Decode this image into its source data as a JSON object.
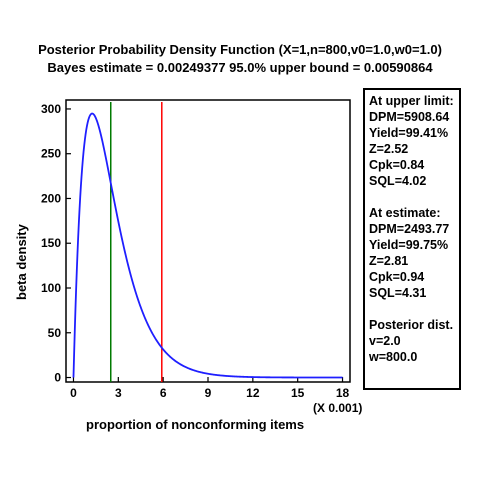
{
  "title_line1": "Posterior Probability Density Function (X=1,n=800,v0=1.0,w0=1.0)",
  "title_line2": "Bayes estimate = 0.00249377    95.0% upper bound = 0.00590864",
  "axes": {
    "ylabel": "beta density",
    "xlabel": "proportion of nonconforming items",
    "x_multiplier": "(X 0.001)"
  },
  "panel": {
    "upper_heading": "At upper limit:",
    "upper_items": [
      "DPM=5908.64",
      "Yield=99.41%",
      "Z=2.52",
      "Cpk=0.84",
      "SQL=4.02"
    ],
    "estimate_heading": "At estimate:",
    "estimate_items": [
      "DPM=2493.77",
      "Yield=99.75%",
      "Z=2.81",
      "Cpk=0.94",
      "SQL=4.31"
    ],
    "posterior_heading": "Posterior dist.",
    "posterior_items": [
      "v=2.0",
      "w=800.0"
    ]
  },
  "chart_data": {
    "type": "line",
    "xlim": [
      -0.5,
      18.5
    ],
    "ylim": [
      -5,
      310
    ],
    "x_ticks": [
      0,
      3,
      6,
      9,
      12,
      15,
      18
    ],
    "y_ticks": [
      0,
      50,
      100,
      150,
      200,
      250,
      300
    ],
    "x_tick_labels": [
      "0",
      "3",
      "6",
      "9",
      "12",
      "15",
      "18"
    ],
    "y_tick_labels": [
      "0",
      "50",
      "100",
      "150",
      "200",
      "250",
      "300"
    ],
    "grid": false,
    "curve": {
      "distribution": "beta",
      "v": 2.0,
      "w": 800.0,
      "x_scale": 0.001,
      "color": "#1f1fff"
    },
    "vlines": [
      {
        "x": 2.49377,
        "color": "#007a00"
      },
      {
        "x": 5.90864,
        "color": "#ff0000"
      }
    ]
  }
}
